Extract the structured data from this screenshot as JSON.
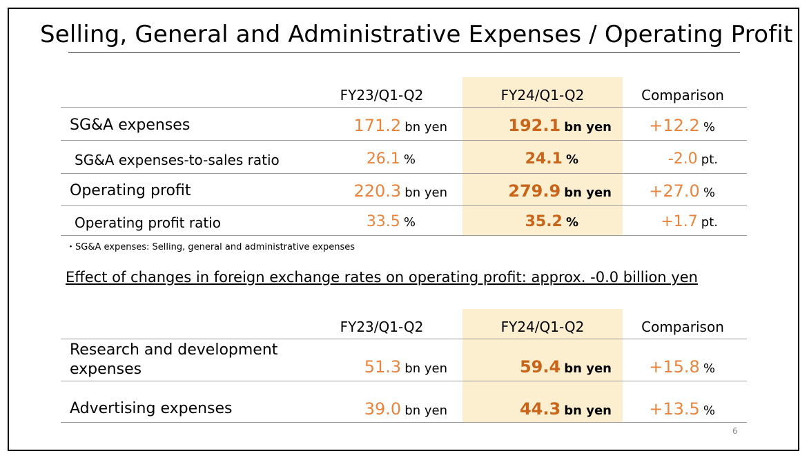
{
  "title": "Selling, General and Administrative Expenses / Operating Profit",
  "table1": {
    "headers": [
      "FY23/Q1-Q2",
      "FY24/Q1-Q2",
      "Comparison"
    ],
    "rows": [
      {
        "label": "SG&A expenses",
        "fy23": "171.2",
        "fy23_unit": "bn yen",
        "fy24": "192.1",
        "fy24_unit": "bn yen",
        "comp": "+12.2",
        "comp_unit": "%"
      },
      {
        "label": "SG&A expenses-to-sales ratio",
        "fy23": "26.1",
        "fy23_unit": "%",
        "fy24": "24.1",
        "fy24_unit": "%",
        "comp": "-2.0",
        "comp_unit": "pt."
      },
      {
        "label": "Operating profit",
        "fy23": "220.3",
        "fy23_unit": "bn yen",
        "fy24": "279.9",
        "fy24_unit": "bn yen",
        "comp": "+27.0",
        "comp_unit": "%"
      },
      {
        "label": "Operating profit ratio",
        "fy23": "33.5",
        "fy23_unit": "%",
        "fy24": "35.2",
        "fy24_unit": "%",
        "comp": "+1.7",
        "comp_unit": "pt."
      }
    ]
  },
  "footnote": "・SG&A expenses: Selling, general and administrative expenses",
  "fx_note": "Effect of changes in foreign exchange rates on operating profit: approx. -0.0 billion yen",
  "table2": {
    "headers": [
      "FY23/Q1-Q2",
      "FY24/Q1-Q2",
      "Comparison"
    ],
    "rows": [
      {
        "label_line1": "Research and development",
        "label_line2": "expenses",
        "fy23": "51.3",
        "fy23_unit": "bn yen",
        "fy24": "59.4",
        "fy24_unit": "bn yen",
        "comp": "+15.8",
        "comp_unit": "%"
      },
      {
        "label": "Advertising expenses",
        "fy23": "39.0",
        "fy23_unit": "bn yen",
        "fy24": "44.3",
        "fy24_unit": "bn yen",
        "comp": "+13.5",
        "comp_unit": "%"
      }
    ]
  },
  "page_number": "6",
  "colors": {
    "highlight": "#fcefcf",
    "value_orange": "#e8843d",
    "value_bold": "#c8651a"
  }
}
